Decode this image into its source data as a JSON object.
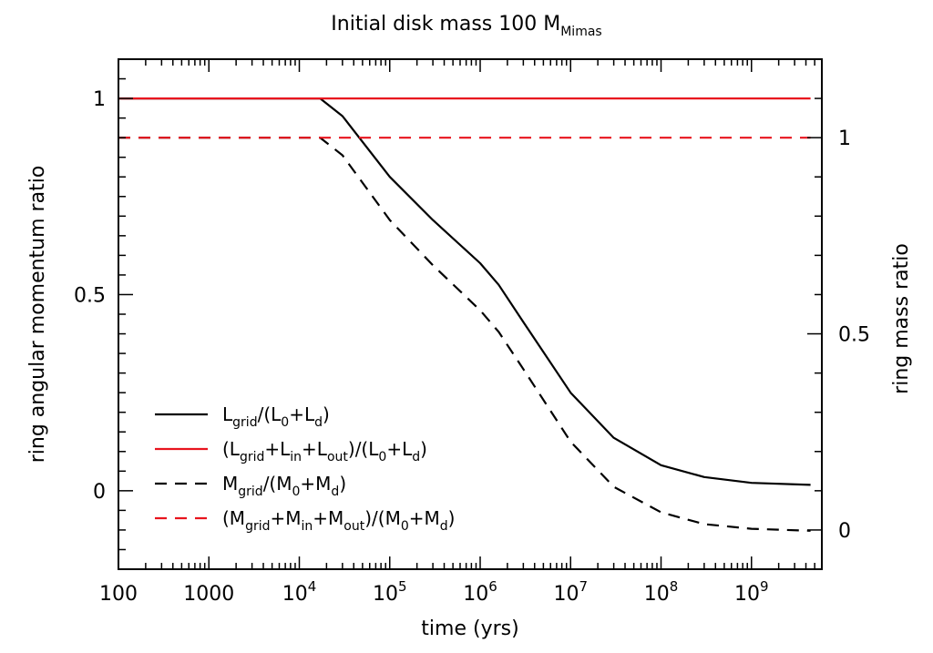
{
  "chart_data": {
    "type": "line",
    "title": "Initial disk mass 100 M",
    "title_subscript": "Mimas",
    "xlabel": "time (yrs)",
    "ylabel_left": "ring angular momentum ratio",
    "ylabel_right": "ring mass ratio",
    "x_scale": "log",
    "xlim": [
      100,
      6000000000
    ],
    "ylim_left": [
      -0.2,
      1.1
    ],
    "ylim_right": [
      -0.1,
      1.2
    ],
    "x_ticks": [
      {
        "value": 100,
        "base": "100",
        "exp": ""
      },
      {
        "value": 1000,
        "base": "1000",
        "exp": ""
      },
      {
        "value": 10000,
        "base": "10",
        "exp": "4"
      },
      {
        "value": 100000,
        "base": "10",
        "exp": "5"
      },
      {
        "value": 1000000,
        "base": "10",
        "exp": "6"
      },
      {
        "value": 10000000,
        "base": "10",
        "exp": "7"
      },
      {
        "value": 100000000,
        "base": "10",
        "exp": "8"
      },
      {
        "value": 1000000000,
        "base": "10",
        "exp": "9"
      }
    ],
    "y_ticks_left": [
      {
        "value": 0,
        "label": "0"
      },
      {
        "value": 0.5,
        "label": "0.5"
      },
      {
        "value": 1,
        "label": "1"
      }
    ],
    "y_ticks_right": [
      {
        "value": 0,
        "label": "0"
      },
      {
        "value": 0.5,
        "label": "0.5"
      },
      {
        "value": 1,
        "label": "1"
      }
    ],
    "legend_position": "bottom-left",
    "series": [
      {
        "axis": "left",
        "color": "#000000",
        "dash": "solid",
        "legend_parts": [
          [
            "L",
            "grid"
          ],
          [
            "/(L",
            ""
          ],
          [
            "0",
            "sub"
          ],
          [
            "+L",
            ""
          ],
          [
            "d",
            "sub"
          ],
          [
            ")",
            ""
          ]
        ],
        "x": [
          100,
          17000,
          30000,
          100000,
          300000,
          1000000,
          1600000,
          3000000,
          10000000,
          30000000,
          100000000,
          300000000,
          1000000000,
          4500000000
        ],
        "y": [
          1.0,
          1.0,
          0.955,
          0.8,
          0.69,
          0.58,
          0.525,
          0.43,
          0.25,
          0.135,
          0.065,
          0.035,
          0.02,
          0.015
        ]
      },
      {
        "axis": "left",
        "color": "#e8141e",
        "dash": "solid",
        "legend_parts": [
          [
            "(L",
            ""
          ],
          [
            "grid",
            "sub"
          ],
          [
            "+L",
            ""
          ],
          [
            "in",
            "sub"
          ],
          [
            "+L",
            ""
          ],
          [
            "out",
            "sub"
          ],
          [
            ")/(L",
            ""
          ],
          [
            "0",
            "sub"
          ],
          [
            "+L",
            ""
          ],
          [
            "d",
            "sub"
          ],
          [
            ")",
            ""
          ]
        ],
        "x": [
          100,
          4500000000
        ],
        "y": [
          1.0,
          1.0
        ]
      },
      {
        "axis": "right",
        "color": "#000000",
        "dash": "dashed",
        "legend_parts": [
          [
            "M",
            ""
          ],
          [
            "grid",
            "sub"
          ],
          [
            "/(M",
            ""
          ],
          [
            "0",
            "sub"
          ],
          [
            "+M",
            ""
          ],
          [
            "d",
            "sub"
          ],
          [
            ")",
            ""
          ]
        ],
        "x": [
          100,
          17000,
          30000,
          100000,
          300000,
          1000000,
          1600000,
          3000000,
          10000000,
          30000000,
          100000000,
          300000000,
          1000000000,
          4500000000
        ],
        "y": [
          1.0,
          1.0,
          0.955,
          0.79,
          0.675,
          0.56,
          0.505,
          0.41,
          0.225,
          0.11,
          0.045,
          0.015,
          0.003,
          -0.002
        ]
      },
      {
        "axis": "right",
        "color": "#e8141e",
        "dash": "dashed",
        "legend_parts": [
          [
            "(M",
            ""
          ],
          [
            "grid",
            "sub"
          ],
          [
            "+M",
            ""
          ],
          [
            "in",
            "sub"
          ],
          [
            "+M",
            ""
          ],
          [
            "out",
            "sub"
          ],
          [
            ")/(M",
            ""
          ],
          [
            "0",
            "sub"
          ],
          [
            "+M",
            ""
          ],
          [
            "d",
            "sub"
          ],
          [
            ")",
            ""
          ]
        ],
        "x": [
          100,
          4500000000
        ],
        "y": [
          1.0,
          1.0
        ]
      }
    ]
  }
}
